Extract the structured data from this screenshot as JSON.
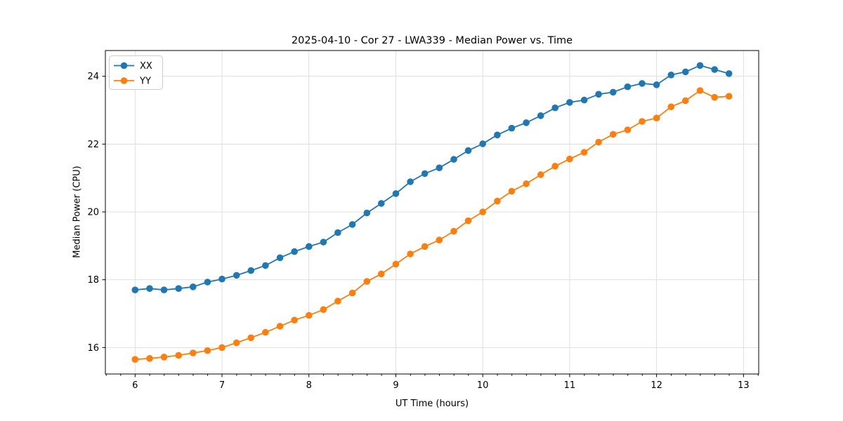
{
  "chart_data": {
    "type": "line",
    "title": "2025-04-10 - Cor 27 - LWA339 - Median Power vs. Time",
    "xlabel": "UT Time (hours)",
    "ylabel": "Median Power (CPU)",
    "xlim": [
      5.658,
      13.175
    ],
    "ylim": [
      15.22,
      24.76
    ],
    "x_ticks": [
      6,
      7,
      8,
      9,
      10,
      11,
      12,
      13
    ],
    "y_ticks": [
      16,
      18,
      20,
      22,
      24
    ],
    "x_minor_step": 0.1667,
    "grid": true,
    "grid_color": "#dcdcdc",
    "legend_position": "upper-left",
    "x": [
      6.0,
      6.167,
      6.333,
      6.5,
      6.667,
      6.833,
      7.0,
      7.167,
      7.333,
      7.5,
      7.667,
      7.833,
      8.0,
      8.167,
      8.333,
      8.5,
      8.667,
      8.833,
      9.0,
      9.167,
      9.333,
      9.5,
      9.667,
      9.833,
      10.0,
      10.167,
      10.333,
      10.5,
      10.667,
      10.833,
      11.0,
      11.167,
      11.333,
      11.5,
      11.667,
      11.833,
      12.0,
      12.167,
      12.333,
      12.5,
      12.667,
      12.833
    ],
    "series": [
      {
        "name": "XX",
        "color": "#1f77b4",
        "values": [
          17.7,
          17.74,
          17.7,
          17.74,
          17.79,
          17.93,
          18.02,
          18.13,
          18.27,
          18.42,
          18.65,
          18.83,
          18.98,
          19.11,
          19.39,
          19.63,
          19.97,
          20.25,
          20.54,
          20.89,
          21.13,
          21.3,
          21.55,
          21.81,
          22.01,
          22.27,
          22.47,
          22.63,
          22.84,
          23.07,
          23.23,
          23.3,
          23.47,
          23.53,
          23.69,
          23.79,
          23.75,
          24.04,
          24.13,
          24.32,
          24.2,
          24.08
        ]
      },
      {
        "name": "YY",
        "color": "#ff7f0e",
        "values": [
          15.65,
          15.68,
          15.72,
          15.77,
          15.84,
          15.91,
          16.0,
          16.14,
          16.29,
          16.45,
          16.63,
          16.81,
          16.95,
          17.12,
          17.37,
          17.61,
          17.95,
          18.17,
          18.46,
          18.76,
          18.98,
          19.17,
          19.43,
          19.74,
          20.0,
          20.32,
          20.61,
          20.83,
          21.1,
          21.35,
          21.56,
          21.76,
          22.06,
          22.29,
          22.42,
          22.67,
          22.77,
          23.1,
          23.28,
          23.58,
          23.38,
          23.41
        ]
      }
    ]
  }
}
